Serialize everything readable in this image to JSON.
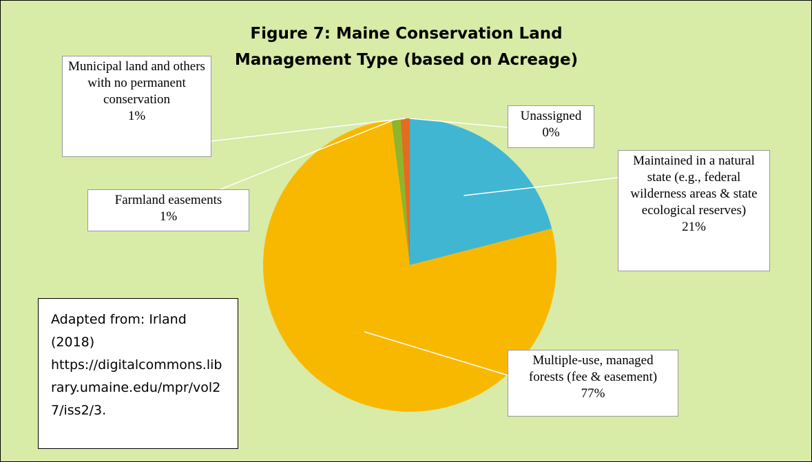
{
  "chart_data": {
    "type": "pie",
    "title": "Figure 7: Maine Conservation Land Management Type (based on Acreage)",
    "categories": [
      "Maintained in a natural state (e.g., federal wilderness areas & state ecological reserves)",
      "Multiple-use, managed forests (fee & easement)",
      "Farmland easements",
      "Municipal land and others with no permanent conservation",
      "Unassigned"
    ],
    "values": [
      21,
      77,
      1,
      1,
      0
    ],
    "value_labels": [
      "21%",
      "77%",
      "1%",
      "1%",
      "0%"
    ],
    "colors": [
      "#41b6d3",
      "#f9b800",
      "#8eb52c",
      "#e36c21",
      "#5b9bd5"
    ],
    "annotation": "Adapted from: Irland (2018) https://digitalcommons.library.umaine.edu/mpr/vol27/iss2/3."
  }
}
